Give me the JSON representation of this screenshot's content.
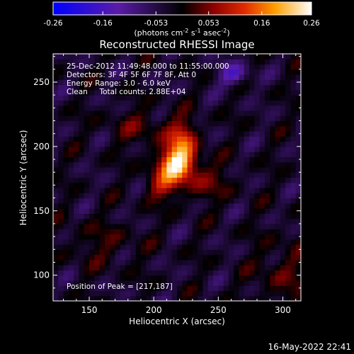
{
  "colorbar": {
    "ticks": [
      "-0.26",
      "-0.16",
      "-0.053",
      "0.053",
      "0.16",
      "0.26"
    ],
    "unit_parts": [
      "(photons cm",
      "-2",
      " s",
      "-1",
      " asec",
      "-2",
      ")"
    ]
  },
  "title": "Reconstructed RHESSI Image",
  "annotations": [
    "25-Dec-2012 11:49:48.000 to 11:55:00.000",
    "Detectors: 3F 4F 5F 6F 7F 8F, Att 0",
    "Energy Range: 3.0 - 6.0 keV",
    "Clean     Total counts: 2.88E+04"
  ],
  "peak_label": "Position of Peak = [217,187]",
  "footer_date": "16-May-2022 22:41",
  "chart_data": {
    "type": "heatmap",
    "title": "Reconstructed RHESSI Image",
    "xlabel": "Heliocentric X (arcsec)",
    "ylabel": "Heliocentric Y (arcsec)",
    "xlim": [
      122,
      314
    ],
    "ylim": [
      80,
      272
    ],
    "x_ticks": [
      150,
      200,
      250,
      300
    ],
    "y_ticks": [
      100,
      150,
      200,
      250
    ],
    "colorbar_range": [
      -0.26,
      0.26
    ],
    "peak": [
      217,
      187
    ],
    "pixel_size_arcsec": 4,
    "sources": [
      {
        "x": 218,
        "y": 187,
        "sx": 10,
        "sy": 9,
        "amp": 0.26
      },
      {
        "x": 222,
        "y": 206,
        "sx": 8,
        "sy": 10,
        "amp": 0.14
      },
      {
        "x": 206,
        "y": 170,
        "sx": 9,
        "sy": 8,
        "amp": 0.1
      },
      {
        "x": 238,
        "y": 172,
        "sx": 16,
        "sy": 10,
        "amp": 0.06
      },
      {
        "x": 190,
        "y": 215,
        "sx": 18,
        "sy": 10,
        "amp": 0.05
      },
      {
        "x": 160,
        "y": 125,
        "sx": 20,
        "sy": 12,
        "amp": 0.04
      },
      {
        "x": 300,
        "y": 100,
        "sx": 15,
        "sy": 20,
        "amp": 0.05
      },
      {
        "x": 262,
        "y": 256,
        "sx": 8,
        "sy": 6,
        "amp": -0.12
      }
    ],
    "colors": {
      "negative": "#0000ff",
      "zero": "#000000",
      "positive": "#ffffff"
    }
  }
}
